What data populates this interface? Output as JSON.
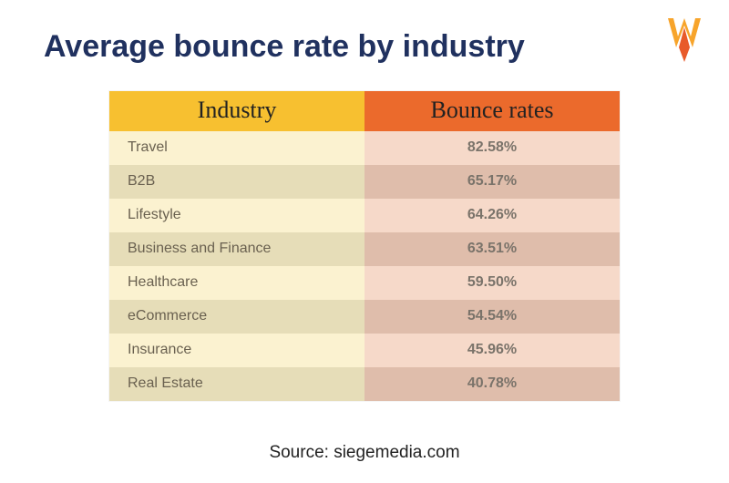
{
  "title": {
    "text": "Average bounce rate by industry",
    "color": "#20315f",
    "fontsize": 34,
    "fontweight": 800
  },
  "logo": {
    "outer_color": "#f7a42b",
    "inner_color": "#e85a2a"
  },
  "table": {
    "type": "table",
    "columns": [
      "Industry",
      "Bounce rates"
    ],
    "header": {
      "left": {
        "text": "Industry",
        "bg": "#f7c030",
        "color": "#222222",
        "fontsize": 26
      },
      "right": {
        "text": "Bounce rates",
        "bg": "#eb6a2c",
        "color": "#222222",
        "fontsize": 26
      }
    },
    "col_left": {
      "bg_odd": "#fbf2d0",
      "bg_even": "#e6ddb8",
      "color": "#6a6150",
      "fontsize": 16,
      "fontweight": 400
    },
    "col_right": {
      "bg_odd": "#f6d9c9",
      "bg_even": "#dfbdab",
      "color": "#7a736a",
      "fontsize": 16,
      "fontweight": 700
    },
    "rows": [
      {
        "industry": "Travel",
        "rate": "82.58%"
      },
      {
        "industry": "B2B",
        "rate": "65.17%"
      },
      {
        "industry": "Lifestyle",
        "rate": "64.26%"
      },
      {
        "industry": "Business and Finance",
        "rate": "63.51%"
      },
      {
        "industry": "Healthcare",
        "rate": "59.50%"
      },
      {
        "industry": "eCommerce",
        "rate": "54.54%"
      },
      {
        "industry": "Insurance",
        "rate": "45.96%"
      },
      {
        "industry": "Real Estate",
        "rate": "40.78%"
      }
    ]
  },
  "source": {
    "text": "Source: siegemedia.com",
    "color": "#222222",
    "fontsize": 19
  },
  "background_color": "#ffffff"
}
